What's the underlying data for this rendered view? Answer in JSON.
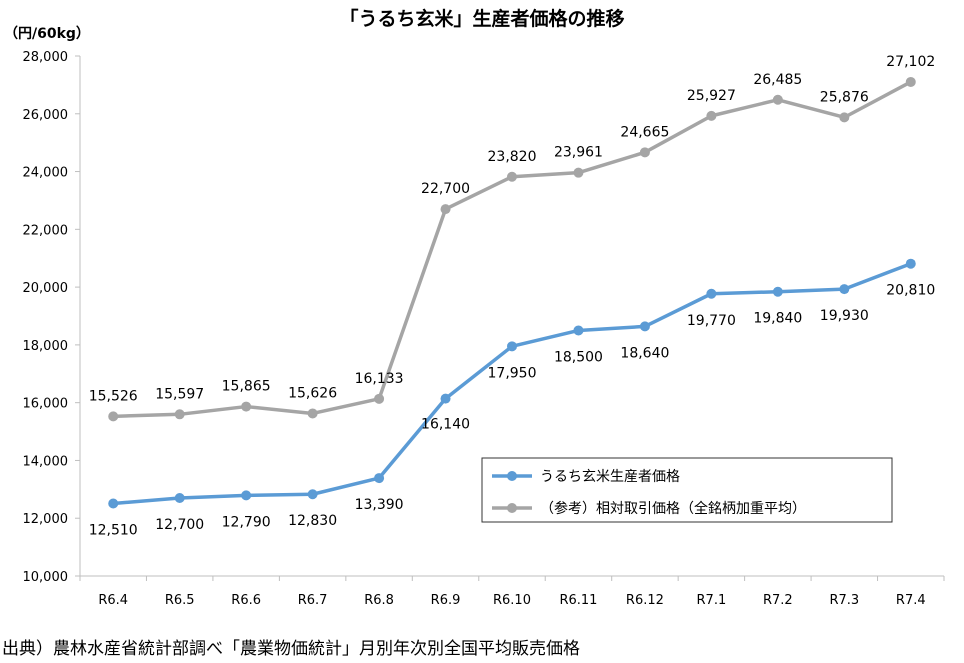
{
  "chart_data": {
    "type": "line",
    "title": "「うるち玄米」生産者価格の推移",
    "ylabel": "（円/60kg）",
    "xlabel": "",
    "ylim": [
      10000,
      28000
    ],
    "yticks": [
      10000,
      12000,
      14000,
      16000,
      18000,
      20000,
      22000,
      24000,
      26000,
      28000
    ],
    "ytick_labels": [
      "10,000",
      "12,000",
      "14,000",
      "16,000",
      "18,000",
      "20,000",
      "22,000",
      "24,000",
      "26,000",
      "28,000"
    ],
    "grid": false,
    "legend_position": "bottom-right",
    "categories": [
      "R6.4",
      "R6.5",
      "R6.6",
      "R6.7",
      "R6.8",
      "R6.9",
      "R6.10",
      "R6.11",
      "R6.12",
      "R7.1",
      "R7.2",
      "R7.3",
      "R7.4"
    ],
    "series": [
      {
        "name": "うるち玄米生産者価格",
        "color": "#5b9bd5",
        "values": [
          12510,
          12700,
          12790,
          12830,
          13390,
          16140,
          17950,
          18500,
          18640,
          19770,
          19840,
          19930,
          20810
        ],
        "labels": [
          "12,510",
          "12,700",
          "12,790",
          "12,830",
          "13,390",
          "16,140",
          "17,950",
          "18,500",
          "18,640",
          "19,770",
          "19,840",
          "19,930",
          "20,810"
        ]
      },
      {
        "name": "（参考）相対取引価格（全銘柄加重平均）",
        "color": "#a5a5a5",
        "values": [
          15526,
          15597,
          15865,
          15626,
          16133,
          22700,
          23820,
          23961,
          24665,
          25927,
          26485,
          25876,
          27102
        ],
        "labels": [
          "15,526",
          "15,597",
          "15,865",
          "15,626",
          "16,133",
          "22,700",
          "23,820",
          "23,961",
          "24,665",
          "25,927",
          "26,485",
          "25,876",
          "27,102"
        ]
      }
    ]
  },
  "source_note": "出典）農林水産省統計部調べ「農業物価統計」月別年次別全国平均販売価格"
}
